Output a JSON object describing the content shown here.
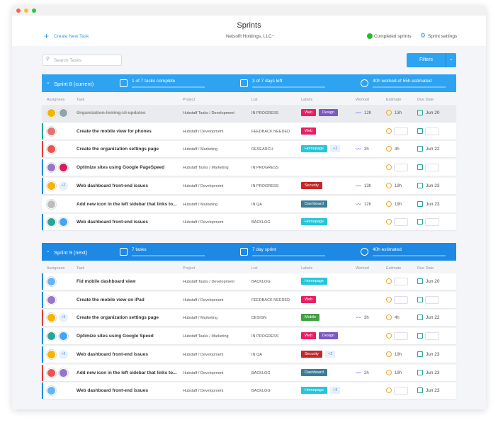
{
  "window": {
    "title": "Sprints"
  },
  "toolbar": {
    "create": "Create New Task",
    "org": "Netsolft Holdings, LLC",
    "completed": "Completed sprints",
    "settings": "Sprint settings"
  },
  "search": {
    "placeholder": "Search Tasks"
  },
  "filters": "Filters",
  "columns": [
    "Assignees",
    "Task",
    "Project",
    "List",
    "Labels",
    "Worked",
    "Estimate",
    "Due Date"
  ],
  "sprints": [
    {
      "name": "Sprint 8 (current)",
      "color": "#2ea3f2",
      "tasks": "1 of 7 tasks complete",
      "days": "3 of 7 days left",
      "hours": "40h worked of 55h estimated",
      "rows": [
        {
          "task": "Organization linking UI updates",
          "done": true,
          "project": "Hubstaff Tasks / Development",
          "list": "IN PROGRESS",
          "labels": [
            {
              "text": "Web",
              "color": "#e91e63"
            },
            {
              "text": "Design",
              "color": "#7e57c2"
            }
          ],
          "worked": "12h",
          "estimate": "13h",
          "due": "Jun 20",
          "avatars": [
            "#f4b400",
            "#90a4ae"
          ]
        },
        {
          "task": "Create the mobile view for phones",
          "accent": "#26a69a",
          "project": "Hubstaff / Development",
          "list": "FEEDBACK NEEDED",
          "labels": [
            {
              "text": "Web",
              "color": "#e91e63"
            }
          ],
          "avatars": [
            "#e57373"
          ]
        },
        {
          "task": "Create the organization settings page",
          "accent": "#e53935",
          "project": "Hubstaff / Marketing",
          "list": "RESEARCH",
          "labels": [
            {
              "text": "Homepage",
              "color": "#26c6da"
            }
          ],
          "more_labels": "+2",
          "worked": "3h",
          "estimate": "4h",
          "due": "Jun 22",
          "avatars": [
            "#ef5350"
          ]
        },
        {
          "task": "Optimize sites using Google PageSpeed",
          "accent": "#1e88e5",
          "project": "Hubstaff Tasks / Marketing",
          "list": "IN PROGRESS",
          "labels": [],
          "avatars": [
            "#9575cd",
            "#d81b60"
          ]
        },
        {
          "task": "Web dashboard front-end issues",
          "accent": "#1e88e5",
          "project": "Hubstaff / Development",
          "list": "IN PROGRESS",
          "labels": [
            {
              "text": "Security",
              "color": "#c62828"
            }
          ],
          "worked": "13h",
          "estimate": "19h",
          "due": "Jun 23",
          "avatars": [
            "#f4b400"
          ],
          "more_assignees": "+2"
        },
        {
          "task": "Add new icon in the left sidebar that links to...",
          "project": "Hubstaff / Marketing",
          "list": "IN QA",
          "labels": [
            {
              "text": "Dashboard",
              "color": "#3a7d99"
            }
          ],
          "worked": "12h",
          "estimate": "19h",
          "due": "Jun 23",
          "avatars": [
            "#bdbdbd"
          ]
        },
        {
          "task": "Web dashboard front-end issues",
          "accent": "#1e88e5",
          "project": "Hubstaff / Development",
          "list": "BACKLOG",
          "labels": [
            {
              "text": "Homepage",
              "color": "#26c6da"
            }
          ],
          "avatars": [
            "#26a69a",
            "#42a5f5"
          ]
        }
      ]
    },
    {
      "name": "Sprint 9 (next)",
      "color": "#1e88e5",
      "tasks": "7 tasks",
      "days": "7 day sprint",
      "hours": "40h estimated",
      "rows": [
        {
          "task": "Fid mobile dashboard view",
          "accent": "#1e88e5",
          "project": "Hubstaff Tasks / Development",
          "list": "BACKLOG",
          "labels": [
            {
              "text": "Homepage",
              "color": "#26c6da"
            }
          ],
          "due": "Jun 20",
          "avatars": [
            "#64b5f6"
          ]
        },
        {
          "task": "Create the mobile view on iPad",
          "accent": "#1e88e5",
          "project": "Hubstaff / Development",
          "list": "FEEDBACK NEEDED",
          "labels": [
            {
              "text": "Web",
              "color": "#e91e63"
            }
          ],
          "avatars": [
            "#9575cd"
          ]
        },
        {
          "task": "Create the organization settings page",
          "accent": "#e53935",
          "project": "Hubstaff / Marketing",
          "list": "DESIGN",
          "labels": [
            {
              "text": "Mobile",
              "color": "#43a047"
            }
          ],
          "worked": "3h",
          "estimate": "4h",
          "due": "Jun 22",
          "avatars": [
            "#f4b400"
          ],
          "more_assignees": "+3"
        },
        {
          "task": "Optimize sites using Google Speed",
          "accent": "#1e88e5",
          "project": "Hubstaff Tasks / Marketing",
          "list": "IN PROGRESS",
          "labels": [
            {
              "text": "Web",
              "color": "#e91e63"
            },
            {
              "text": "Design",
              "color": "#7e57c2"
            }
          ],
          "avatars": [
            "#26a69a",
            "#42a5f5"
          ]
        },
        {
          "task": "Web dashboard front-end issues",
          "accent": "#1e88e5",
          "project": "Hubstaff / Development",
          "list": "IN QA",
          "labels": [
            {
              "text": "Security",
              "color": "#c62828"
            }
          ],
          "more_labels": "+2",
          "estimate": "19h",
          "due": "Jun 23",
          "avatars": [
            "#f4b400"
          ],
          "more_assignees": "+2"
        },
        {
          "task": "Add new icon in the left sidebar that links to...",
          "accent": "#e53935",
          "project": "Hubstaff / Development",
          "list": "BACKLOG",
          "labels": [
            {
              "text": "Dashboard",
              "color": "#3a7d99"
            }
          ],
          "worked": "2h",
          "estimate": "19h",
          "due": "Jun 23",
          "avatars": [
            "#ef5350",
            "#9575cd"
          ]
        },
        {
          "task": "Web dashboard front-end issues",
          "accent": "#1e88e5",
          "project": "Hubstaff / Development",
          "list": "BACKLOG",
          "labels": [
            {
              "text": "Homepage",
              "color": "#26c6da"
            }
          ],
          "more_labels": "+3",
          "due": "Jun 23",
          "avatars": [
            "#64b5f6"
          ]
        }
      ]
    }
  ]
}
